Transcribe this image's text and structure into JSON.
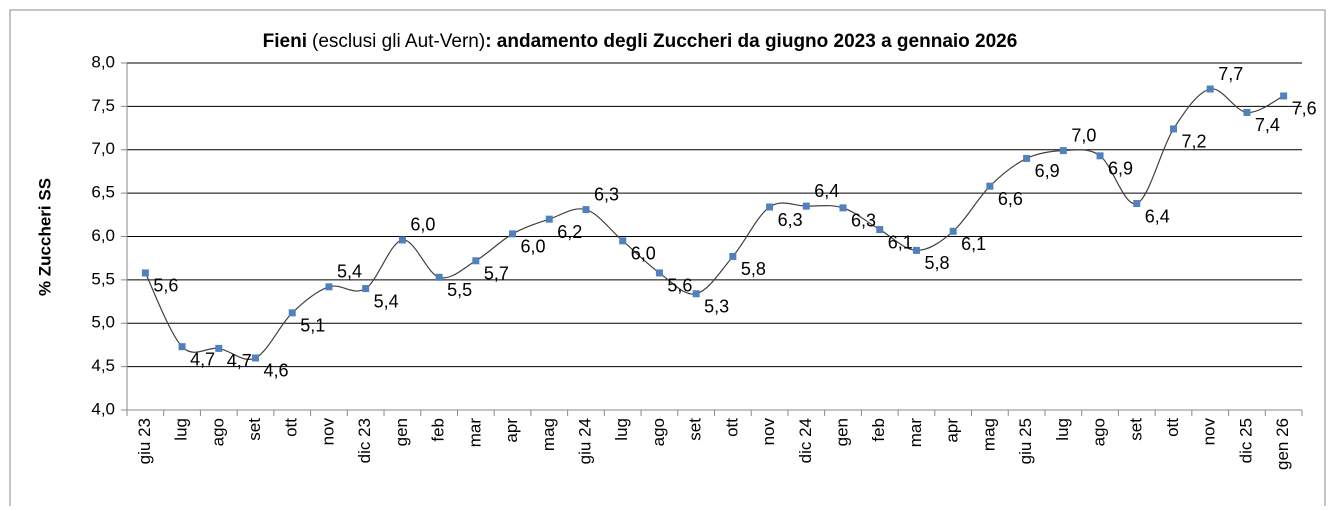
{
  "chart_data": {
    "type": "line",
    "title": [
      "Fieni",
      "(esclusi gli Aut-Vern)",
      ": andamento degli Zuccheri da giugno 2023 a gennaio 2026"
    ],
    "y_label": "% Zuccheri SS",
    "categories": [
      "giu 23",
      "lug",
      "ago",
      "set",
      "ott",
      "nov",
      "dic 23",
      "gen",
      "feb",
      "mar",
      "apr",
      "mag",
      "giu 24",
      "lug",
      "ago",
      "set",
      "ott",
      "nov",
      "dic 24",
      "gen",
      "feb",
      "mar",
      "apr",
      "mag",
      "giu 25",
      "lug",
      "ago",
      "set",
      "ott",
      "nov",
      "dic 25",
      "gen 26"
    ],
    "series": [
      {
        "name": "Zuccheri",
        "color": "#4f81bd",
        "values": [
          5.58,
          4.73,
          4.71,
          4.6,
          5.12,
          5.42,
          5.4,
          5.96,
          5.53,
          5.72,
          6.03,
          6.2,
          6.31,
          5.95,
          5.58,
          5.34,
          5.77,
          6.34,
          6.35,
          6.33,
          6.08,
          5.84,
          6.06,
          6.58,
          6.9,
          6.99,
          6.93,
          6.38,
          7.24,
          7.7,
          7.43,
          7.62
        ],
        "value_labels": [
          "5,6",
          "4,7",
          "4,7",
          "4,6",
          "5,1",
          "5,4",
          "5,4",
          "6,0",
          "5,5",
          "5,7",
          "6,0",
          "6,2",
          "6,3",
          "6,0",
          "5,6",
          "5,3",
          "5,8",
          "6,3",
          "6,4",
          "6,3",
          "6,1",
          "5,8",
          "6,1",
          "6,6",
          "6,9",
          "7,0",
          "6,9",
          "6,4",
          "7,2",
          "7,7",
          "7,4",
          "7,6"
        ]
      }
    ],
    "ylim": [
      4,
      8
    ],
    "yticks": [
      {
        "value": 4,
        "label": "4,0"
      },
      {
        "value": 4.5,
        "label": "4,5"
      },
      {
        "value": 5,
        "label": "5,0"
      },
      {
        "value": 5.5,
        "label": "5,5"
      },
      {
        "value": 6,
        "label": "6,0"
      },
      {
        "value": 6.5,
        "label": "6,5"
      },
      {
        "value": 7,
        "label": "7,0"
      },
      {
        "value": 7.5,
        "label": "7,5"
      },
      {
        "value": 8,
        "label": "8,0"
      }
    ],
    "grid": true,
    "line_color": "#404040"
  }
}
